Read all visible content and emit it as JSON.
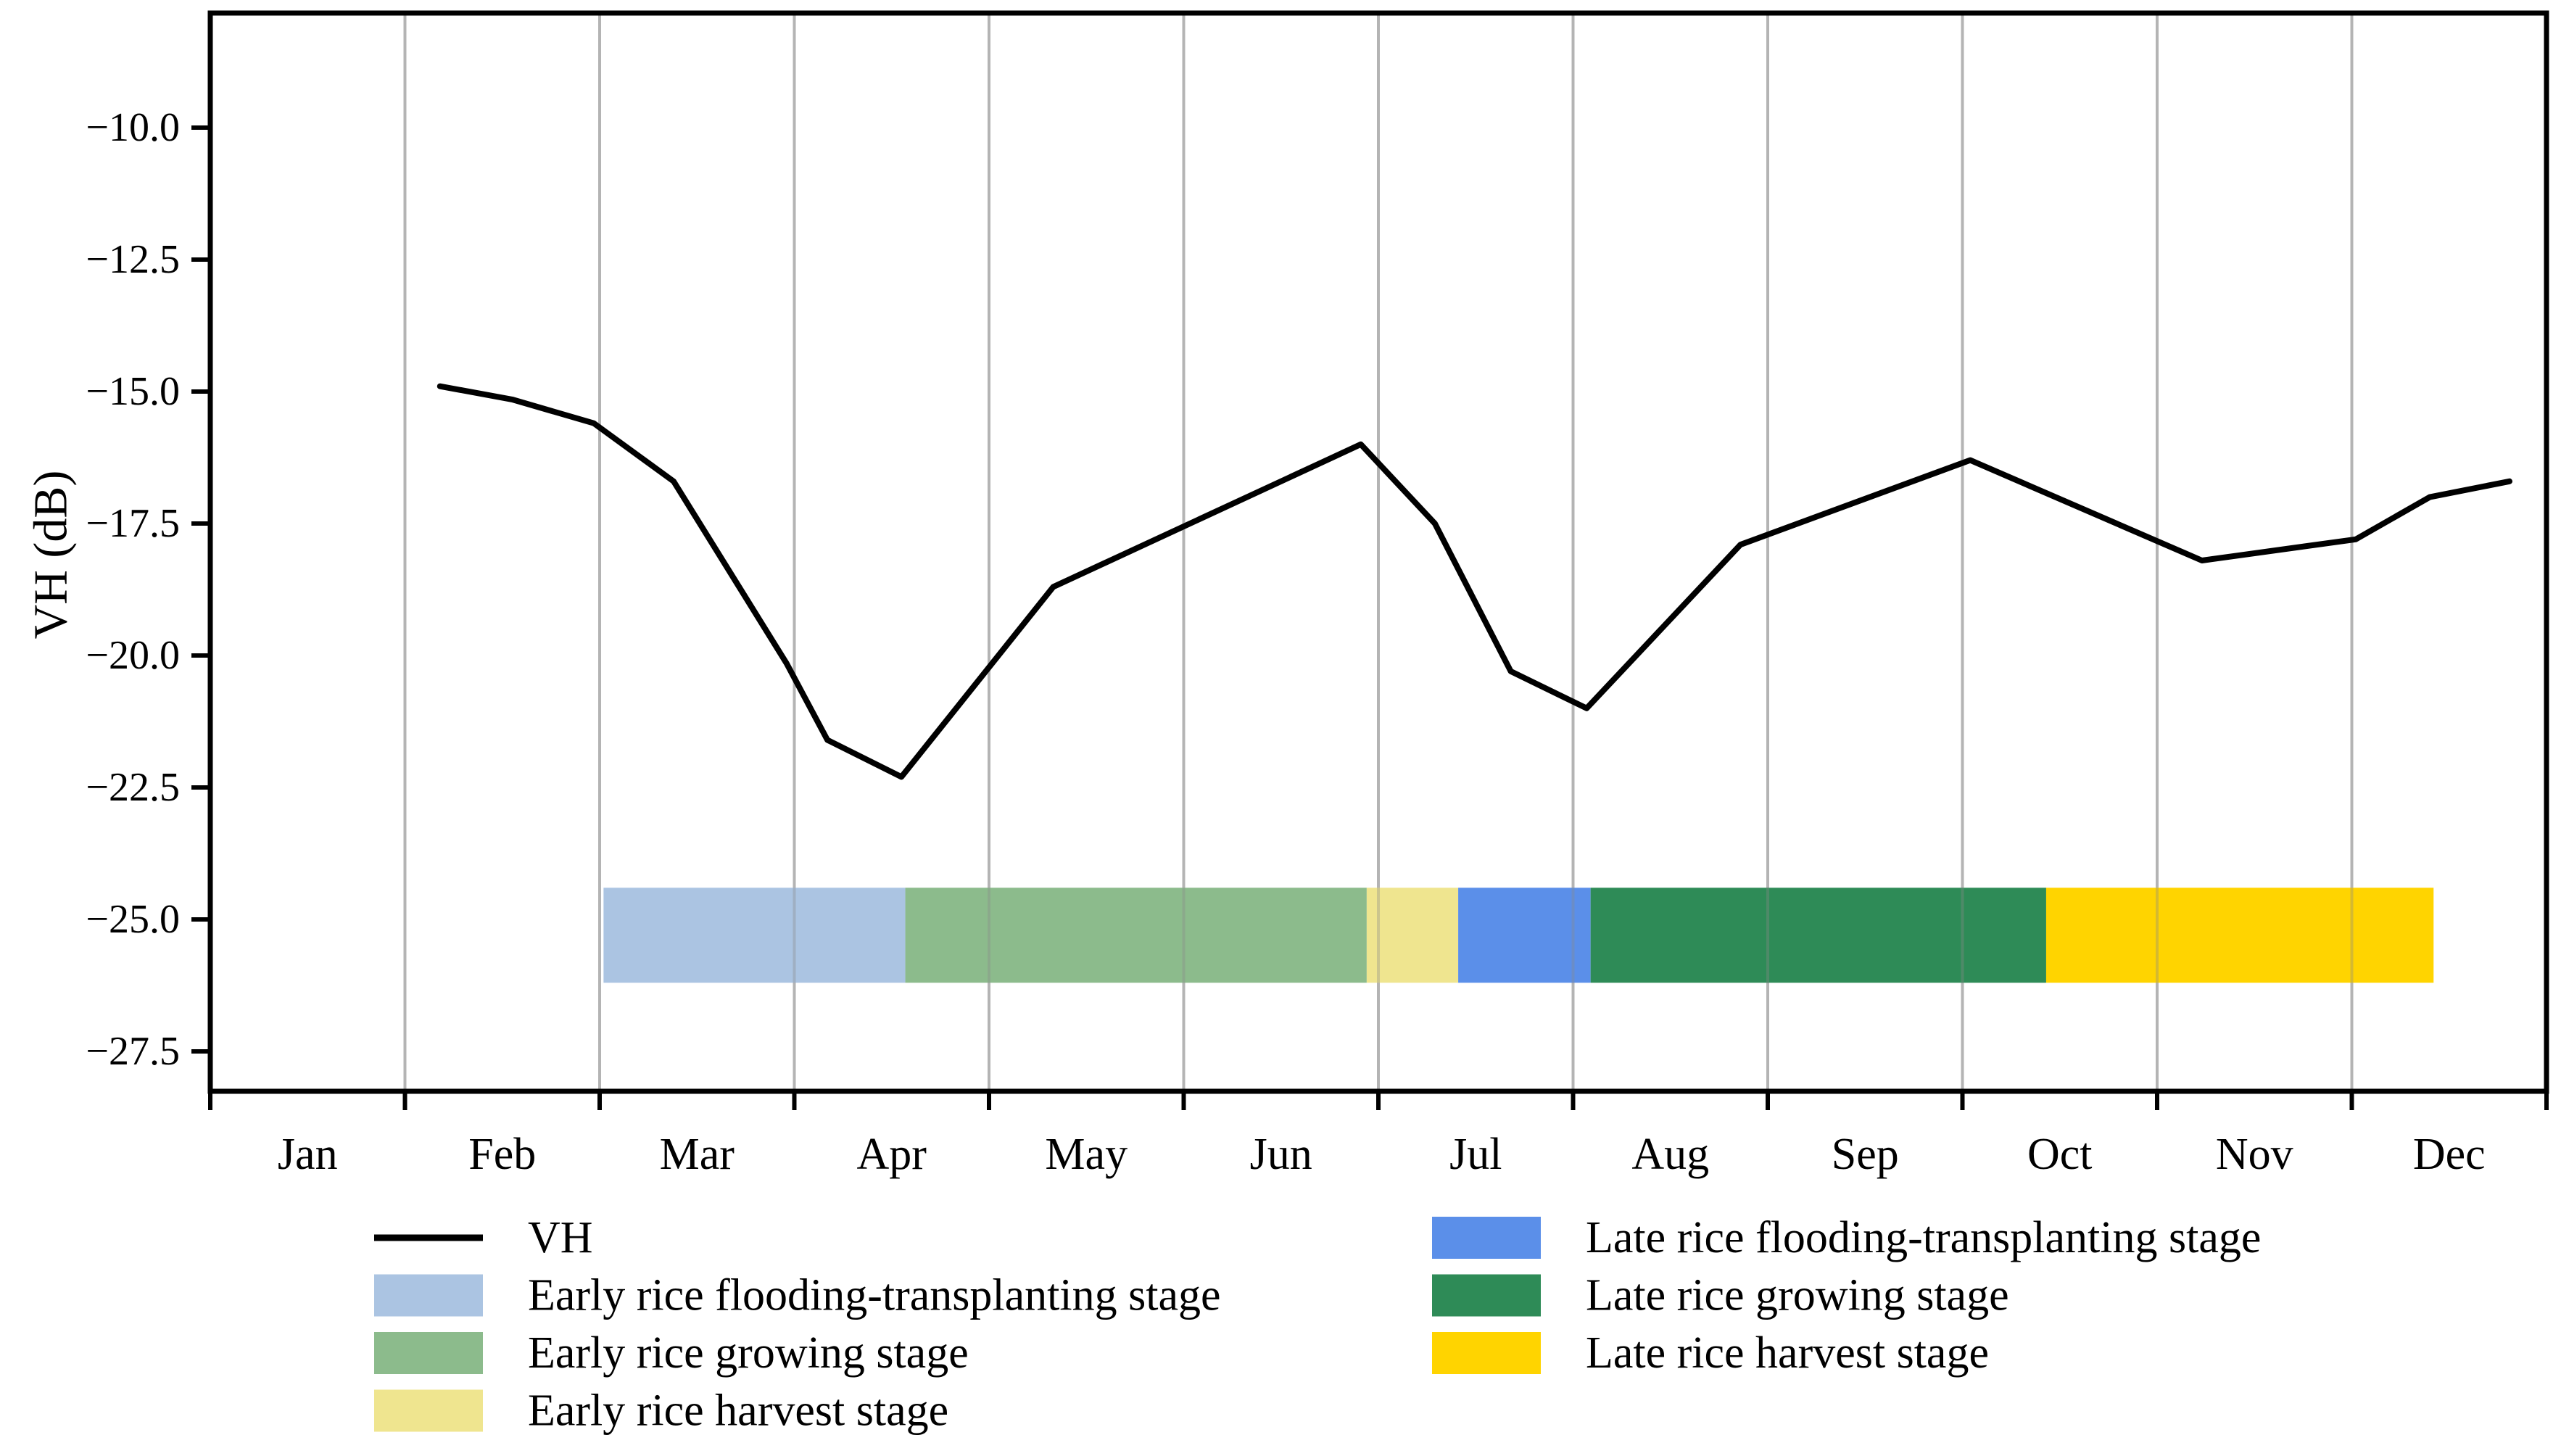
{
  "chart_data": {
    "type": "line",
    "title": "",
    "xlabel": "",
    "ylabel": "VH (dB)",
    "x_axis": {
      "categories": [
        "Jan",
        "Feb",
        "Mar",
        "Apr",
        "May",
        "Jun",
        "Jul",
        "Aug",
        "Sep",
        "Oct",
        "Nov",
        "Dec"
      ],
      "range_months": [
        0,
        12
      ],
      "gridlines": "monthly-vertical",
      "gridline_color": "#b4b4b4"
    },
    "y_axis": {
      "tick_values": [
        -10.0,
        -12.5,
        -15.0,
        -17.5,
        -20.0,
        -22.5,
        -25.0,
        -27.5
      ],
      "tick_labels": [
        "−10.0",
        "−12.5",
        "−15.0",
        "−17.5",
        "−20.0",
        "−22.5",
        "−25.0",
        "−27.5"
      ],
      "range": [
        -28.2,
        -7.8
      ]
    },
    "series": [
      {
        "name": "VH",
        "color": "#000000",
        "line_width": 8,
        "points": [
          {
            "month": 1.18,
            "vh_db": -14.9
          },
          {
            "month": 1.55,
            "vh_db": -15.15
          },
          {
            "month": 1.97,
            "vh_db": -15.6
          },
          {
            "month": 2.38,
            "vh_db": -16.7
          },
          {
            "month": 2.96,
            "vh_db": -20.15
          },
          {
            "month": 3.17,
            "vh_db": -21.6
          },
          {
            "month": 3.55,
            "vh_db": -22.3
          },
          {
            "month": 4.33,
            "vh_db": -18.7
          },
          {
            "month": 5.91,
            "vh_db": -16.0
          },
          {
            "month": 6.29,
            "vh_db": -17.5
          },
          {
            "month": 6.68,
            "vh_db": -20.3
          },
          {
            "month": 7.07,
            "vh_db": -21.0
          },
          {
            "month": 7.86,
            "vh_db": -17.9
          },
          {
            "month": 9.04,
            "vh_db": -16.3
          },
          {
            "month": 10.23,
            "vh_db": -18.2
          },
          {
            "month": 11.02,
            "vh_db": -17.8
          },
          {
            "month": 11.4,
            "vh_db": -17.0
          },
          {
            "month": 11.81,
            "vh_db": -16.7
          }
        ]
      }
    ],
    "stage_bands": {
      "band_top_db": -24.4,
      "band_bottom_db": -26.2,
      "bands": [
        {
          "label": "Early rice flooding-transplanting stage",
          "start_month": 2.02,
          "end_month": 3.57,
          "color": "#abc4e2"
        },
        {
          "label": "Early rice growing stage",
          "start_month": 3.57,
          "end_month": 5.94,
          "color": "#8cbb8c"
        },
        {
          "label": "Early rice harvest stage",
          "start_month": 5.94,
          "end_month": 6.41,
          "color": "#efe58f"
        },
        {
          "label": "Late rice flooding-transplanting stage",
          "start_month": 6.41,
          "end_month": 7.09,
          "color": "#5b8fe9"
        },
        {
          "label": "Late rice growing stage",
          "start_month": 7.09,
          "end_month": 9.43,
          "color": "#2e8b57"
        },
        {
          "label": "Late rice harvest stage",
          "start_month": 9.43,
          "end_month": 11.42,
          "color": "#ffd400"
        }
      ]
    },
    "legend": {
      "position": "below-chart",
      "columns": [
        [
          {
            "label": "VH",
            "swatch": "line",
            "color": "#000000"
          },
          {
            "label": "Early rice flooding-transplanting stage",
            "swatch": "rect",
            "color": "#abc4e2"
          },
          {
            "label": "Early rice growing stage",
            "swatch": "rect",
            "color": "#8cbb8c"
          },
          {
            "label": "Early rice harvest stage",
            "swatch": "rect",
            "color": "#efe58f"
          }
        ],
        [
          {
            "label": "Late rice flooding-transplanting stage",
            "swatch": "rect",
            "color": "#5b8fe9"
          },
          {
            "label": "Late rice growing stage",
            "swatch": "rect",
            "color": "#2e8b57"
          },
          {
            "label": "Late rice harvest stage",
            "swatch": "rect",
            "color": "#ffd400"
          }
        ]
      ]
    }
  }
}
